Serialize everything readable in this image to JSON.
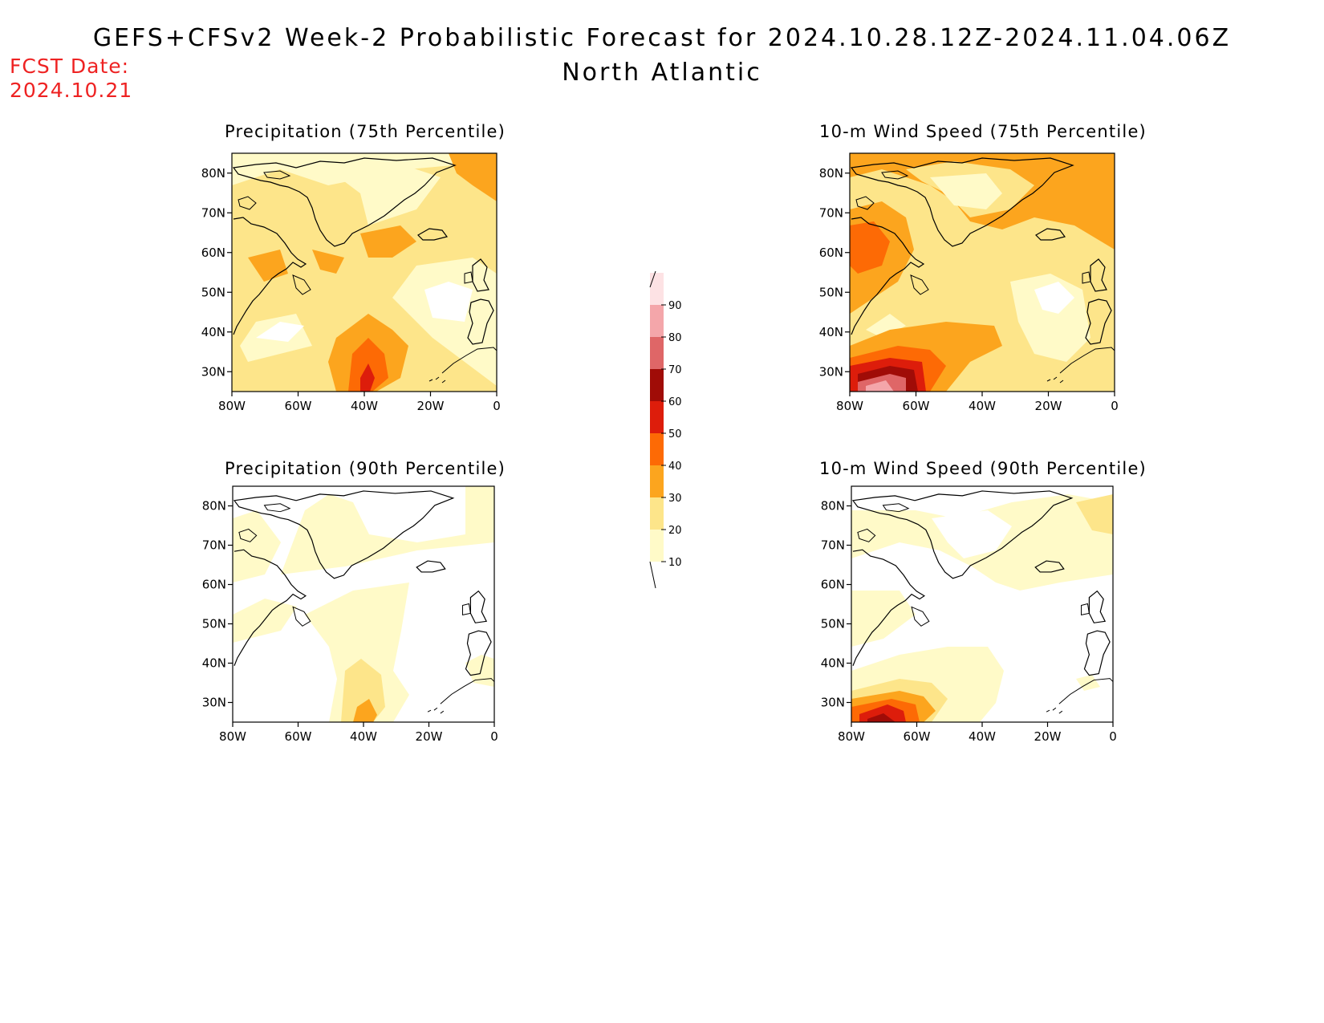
{
  "header": {
    "title_line1": "GEFS+CFSv2 Week-2 Probabilistic Forecast for 2024.10.28.12Z-2024.11.04.06Z",
    "title_line2": "North Atlantic",
    "fcst_label": "FCST Date:",
    "fcst_date": "2024.10.21"
  },
  "panels": [
    {
      "title": "Precipitation (75th Percentile)"
    },
    {
      "title": "10-m Wind Speed (75th Percentile)"
    },
    {
      "title": "Precipitation (90th Percentile)"
    },
    {
      "title": "10-m Wind Speed (90th Percentile)"
    }
  ],
  "axes": {
    "lon_ticks": [
      "80W",
      "60W",
      "40W",
      "20W",
      "0"
    ],
    "lat_ticks": [
      "80N",
      "70N",
      "60N",
      "50N",
      "40N",
      "30N"
    ]
  },
  "colorbar": {
    "levels": [
      "10",
      "20",
      "30",
      "40",
      "50",
      "60",
      "70",
      "80",
      "90"
    ],
    "colors": [
      "#fffac8",
      "#fde58a",
      "#fca51e",
      "#fd6a05",
      "#dd1d0b",
      "#a00c07",
      "#df6667",
      "#f4a6aa",
      "#fde2e4"
    ]
  }
}
